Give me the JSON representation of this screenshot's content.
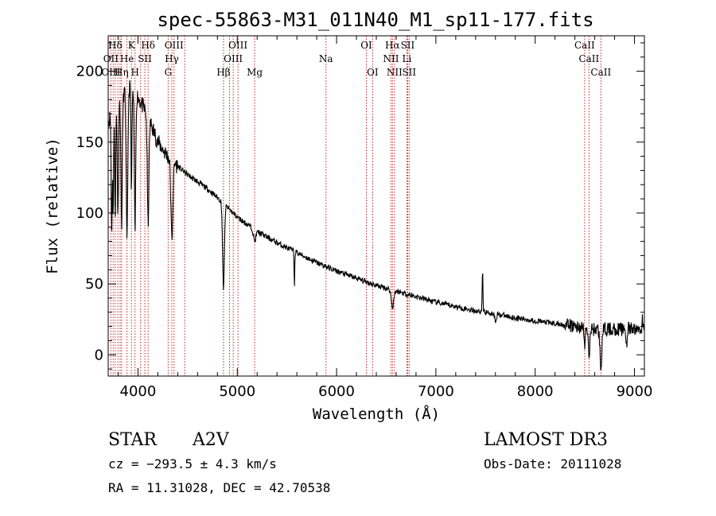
{
  "chart_data": {
    "type": "line",
    "title": "spec-55863-M31_011N40_M1_sp11-177.fits",
    "xlabel": "Wavelength (Å)",
    "ylabel": "Flux (relative)",
    "xlim": [
      3700,
      9100
    ],
    "ylim": [
      -15,
      225
    ],
    "xticks": [
      4000,
      5000,
      6000,
      7000,
      8000,
      9000
    ],
    "yticks": [
      0,
      50,
      100,
      150,
      200
    ],
    "spectrum": {
      "continuum": [
        [
          3700,
          165
        ],
        [
          3800,
          178
        ],
        [
          3900,
          190
        ],
        [
          4000,
          182
        ],
        [
          4100,
          168
        ],
        [
          4200,
          150
        ],
        [
          4300,
          140
        ],
        [
          4400,
          133
        ],
        [
          4500,
          127
        ],
        [
          4600,
          122
        ],
        [
          4700,
          117
        ],
        [
          4800,
          111
        ],
        [
          4900,
          104
        ],
        [
          5000,
          97
        ],
        [
          5200,
          87
        ],
        [
          5400,
          79
        ],
        [
          5600,
          72
        ],
        [
          5800,
          65
        ],
        [
          6000,
          59
        ],
        [
          6200,
          54
        ],
        [
          6400,
          49
        ],
        [
          6600,
          45
        ],
        [
          6800,
          41
        ],
        [
          7000,
          37
        ],
        [
          7200,
          34
        ],
        [
          7400,
          31
        ],
        [
          7600,
          29
        ],
        [
          7800,
          26
        ],
        [
          8000,
          24
        ],
        [
          8200,
          22
        ],
        [
          8400,
          20
        ],
        [
          8600,
          18
        ],
        [
          8800,
          18
        ],
        [
          9000,
          18
        ],
        [
          9100,
          18
        ]
      ],
      "absorption": [
        [
          3735,
          80,
          5
        ],
        [
          3750,
          70,
          5
        ],
        [
          3771,
          75,
          5
        ],
        [
          3798,
          80,
          6
        ],
        [
          3835,
          90,
          7
        ],
        [
          3889,
          110,
          8
        ],
        [
          3934,
          70,
          5
        ],
        [
          3970,
          100,
          7
        ],
        [
          4102,
          75,
          8
        ],
        [
          4341,
          55,
          10
        ],
        [
          4861,
          60,
          9
        ],
        [
          5175,
          8,
          12
        ],
        [
          5575,
          25,
          3
        ],
        [
          6300,
          12,
          4
        ],
        [
          6563,
          12,
          12
        ],
        [
          7600,
          5,
          8
        ],
        [
          8498,
          12,
          6
        ],
        [
          8542,
          20,
          8
        ],
        [
          8662,
          25,
          10
        ],
        [
          8920,
          10,
          6
        ]
      ],
      "emission": [
        [
          6300,
          12,
          4
        ],
        [
          7470,
          30,
          4
        ],
        [
          9080,
          8,
          4
        ]
      ],
      "noise": 2.0
    },
    "line_markers": [
      {
        "label": "Hδ",
        "wavelength": 3771,
        "row": 1
      },
      {
        "label": "K",
        "wavelength": 3934,
        "row": 1
      },
      {
        "label": "Hδ",
        "wavelength": 4102,
        "row": 1
      },
      {
        "label": "OIII",
        "wavelength": 4363,
        "row": 1
      },
      {
        "label": "OIII",
        "wavelength": 5007,
        "row": 1
      },
      {
        "label": "OI",
        "wavelength": 6300,
        "row": 1
      },
      {
        "label": "Hα",
        "wavelength": 6563,
        "row": 1
      },
      {
        "label": "SII",
        "wavelength": 6716,
        "row": 1
      },
      {
        "label": "CaII",
        "wavelength": 8498,
        "row": 1
      },
      {
        "label": "OII",
        "wavelength": 3727,
        "row": 2
      },
      {
        "label": "He",
        "wavelength": 3889,
        "row": 2
      },
      {
        "label": "SII",
        "wavelength": 4069,
        "row": 2
      },
      {
        "label": "Hγ",
        "wavelength": 4341,
        "row": 2
      },
      {
        "label": "OIII",
        "wavelength": 4959,
        "row": 2
      },
      {
        "label": "Na",
        "wavelength": 5893,
        "row": 2
      },
      {
        "label": "NII",
        "wavelength": 6548,
        "row": 2
      },
      {
        "label": "Li",
        "wavelength": 6708,
        "row": 2
      },
      {
        "label": "CaII",
        "wavelength": 8542,
        "row": 2
      },
      {
        "label": "OIII",
        "wavelength": 3727,
        "row": 3
      },
      {
        "label": "Hη",
        "wavelength": 3835,
        "row": 3
      },
      {
        "label": "H",
        "wavelength": 3970,
        "row": 3
      },
      {
        "label": "G",
        "wavelength": 4304,
        "row": 3
      },
      {
        "label": "Hβ",
        "wavelength": 4861,
        "row": 3
      },
      {
        "label": "Mg",
        "wavelength": 5175,
        "row": 3
      },
      {
        "label": "OI",
        "wavelength": 6363,
        "row": 3
      },
      {
        "label": "NII",
        "wavelength": 6583,
        "row": 3
      },
      {
        "label": "SII",
        "wavelength": 6731,
        "row": 3
      },
      {
        "label": "CaII",
        "wavelength": 8662,
        "row": 3
      }
    ],
    "extra_marker_wavelengths": [
      3750,
      3798,
      3820,
      4026,
      4471,
      4922
    ]
  },
  "info": {
    "object_class": "STAR",
    "subclass": "A2V",
    "survey": "LAMOST DR3",
    "redshift_text": "cz = −293.5 ± 4.3 km/s",
    "obs_date_text": "Obs-Date: 20111028",
    "coords_text": "RA =  11.31028, DEC =  42.70538"
  },
  "colors": {
    "spectrum": "#000000",
    "marker_line": "#cc2222",
    "axis": "#000000",
    "background": "#ffffff"
  }
}
